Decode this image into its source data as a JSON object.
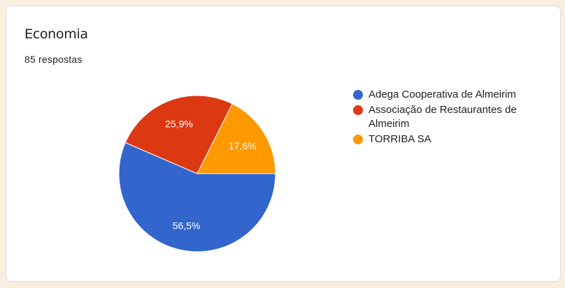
{
  "card": {
    "title": "Economia",
    "responses": "85 respostas"
  },
  "chart_data": {
    "type": "pie",
    "categories": [
      "Adega Cooperativa de Almeirim",
      "Associação de Restaurantes de Almeirim",
      "TORRIBA SA"
    ],
    "values": [
      56.5,
      25.9,
      17.6
    ],
    "labels": [
      "56,5%",
      "25,9%",
      "17,6%"
    ],
    "colors": [
      "#3366cc",
      "#dc3912",
      "#ff9900"
    ],
    "legend_position": "right"
  }
}
